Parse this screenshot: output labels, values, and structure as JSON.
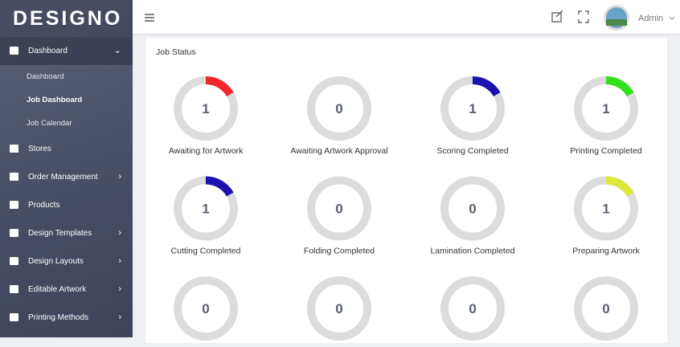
{
  "sidebar": {
    "logo": "DESIGNO",
    "menu": [
      {
        "label": "Dashboard",
        "children": [
          "Dashboard",
          "Job Dashboard",
          "Job Calendar"
        ]
      },
      {
        "label": "Stores"
      },
      {
        "label": "Order Management"
      },
      {
        "label": "Products"
      },
      {
        "label": "Design Templates"
      },
      {
        "label": "Design Layouts"
      },
      {
        "label": "Editable Artwork"
      },
      {
        "label": "Printing Methods"
      }
    ]
  },
  "header": {
    "user": "Admin"
  },
  "panel": {
    "title": "Job Status",
    "gauge_range": [
      0,
      6
    ],
    "gauges": [
      {
        "count": 1,
        "label": "Awaiting for Artwork",
        "color": "#f0262a"
      },
      {
        "count": 0,
        "label": "Awaiting Artwork Approval"
      },
      {
        "count": 1,
        "label": "Scoring Completed",
        "color": "#1d12b0"
      },
      {
        "count": 1,
        "label": "Printing Completed",
        "color": "#33e01c"
      },
      {
        "count": 1,
        "label": "Cutting Completed",
        "color": "#1d12b0"
      },
      {
        "count": 0,
        "label": "Folding Completed"
      },
      {
        "count": 0,
        "label": "Lamination Completed"
      },
      {
        "count": 1,
        "label": "Preparing Artwork",
        "color": "#dbe83a"
      },
      {
        "count": 0,
        "label": null
      },
      {
        "count": 0,
        "label": null
      },
      {
        "count": 0,
        "label": null
      },
      {
        "count": 0,
        "label": null
      }
    ]
  }
}
